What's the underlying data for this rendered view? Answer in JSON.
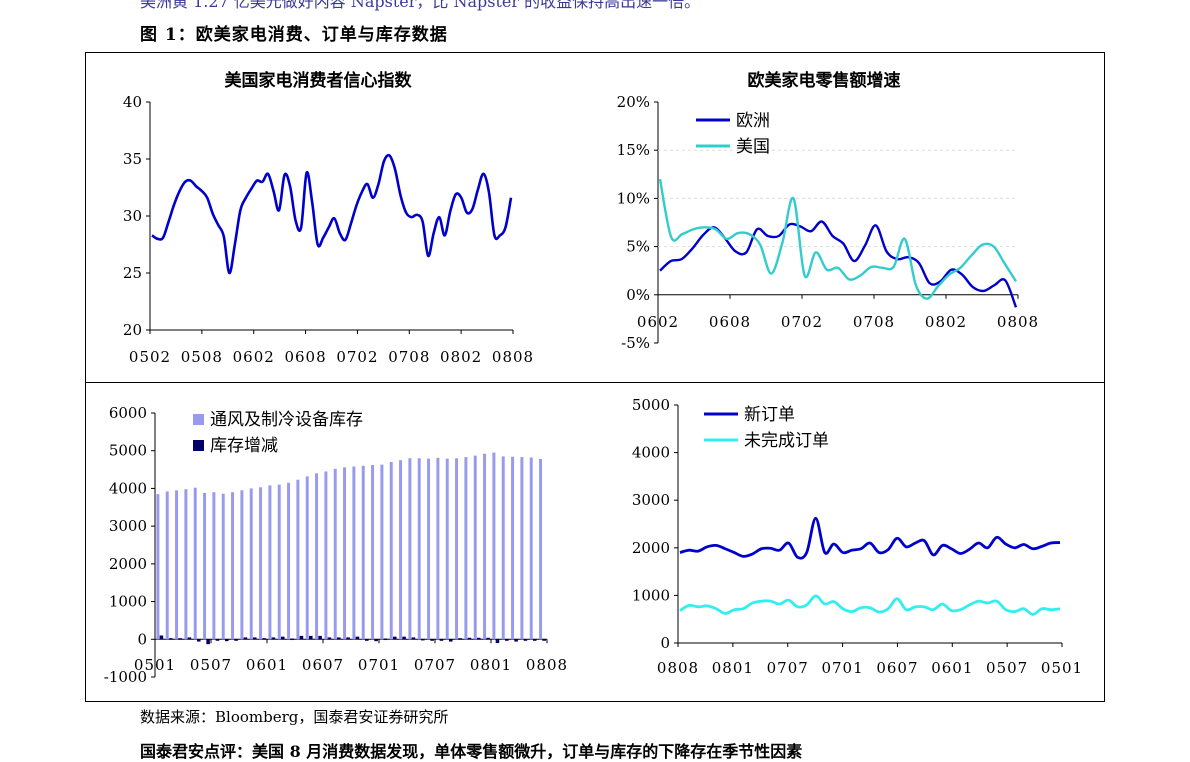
{
  "header": {
    "clipped_top_text": "美洲黄 1.27 亿美元做好内容 Napster，比 Napster 的收益保持高出速一倍。",
    "figure_title": "图 1：欧美家电消费、订单与库存数据"
  },
  "footer": {
    "source": "数据来源：Bloomberg，国泰君安证券研究所",
    "clipped_bottom_text": "国泰君安点评：美国 8 月消费数据发现，单体零售额微升，订单与库存的下降存在季节性因素"
  },
  "chart_data": [
    {
      "id": "c1",
      "type": "line",
      "title": "美国家电消费者信心指数",
      "ylim": [
        20,
        40
      ],
      "yticks": [
        "40",
        "35",
        "30",
        "25",
        "20"
      ],
      "xticks": [
        "0502",
        "0508",
        "0602",
        "0608",
        "0702",
        "0708",
        "0802",
        "0808"
      ],
      "colors": {
        "line": "#0000cc"
      },
      "series": [
        {
          "values": [
            28.3,
            28.0,
            28.1,
            29.5,
            31.0,
            32.2,
            33.0,
            33.1,
            32.6,
            32.2,
            31.6,
            30.2,
            29.2,
            28.2,
            25.0,
            27.5,
            30.5,
            31.6,
            32.4,
            33.1,
            33.0,
            33.7,
            32.2,
            30.5,
            33.6,
            32.6,
            29.6,
            29.0,
            33.8,
            31.2,
            27.5,
            28.1,
            29.0,
            29.8,
            28.5,
            27.9,
            29.3,
            30.9,
            32.1,
            32.8,
            31.6,
            32.8,
            34.8,
            35.3,
            34.1,
            31.8,
            30.3,
            29.9,
            30.1,
            29.5,
            26.5,
            28.5,
            29.9,
            28.3,
            30.4,
            31.9,
            31.6,
            30.3,
            30.6,
            32.3,
            33.7,
            32.1,
            28.3,
            28.3,
            29.0,
            31.6
          ]
        }
      ]
    },
    {
      "id": "c2",
      "type": "line",
      "title": "欧美家电零售额增速",
      "ylim": [
        -5,
        20
      ],
      "yticks": [
        "20%",
        "15%",
        "10%",
        "5%",
        "0%",
        "-5%"
      ],
      "xticks": [
        "0602",
        "0608",
        "0702",
        "0708",
        "0802",
        "0808"
      ],
      "legend": "top-left",
      "series": [
        {
          "name": "欧洲",
          "color": "#0000cc",
          "values": [
            2.5,
            3.5,
            3.7,
            4.8,
            6.2,
            7.0,
            5.9,
            4.5,
            4.4,
            6.8,
            6.1,
            6.1,
            7.3,
            7.1,
            6.6,
            7.6,
            6.1,
            5.3,
            3.5,
            5.1,
            7.2,
            4.5,
            3.7,
            3.9,
            3.3,
            1.2,
            1.4,
            2.6,
            2.1,
            0.8,
            0.4,
            1.0,
            1.5,
            -1.3
          ]
        },
        {
          "name": "美国",
          "color": "#33cccc",
          "values": [
            12.0,
            6.0,
            6.3,
            6.8,
            7.0,
            6.8,
            5.8,
            6.4,
            6.3,
            5.2,
            2.2,
            5.4,
            10.0,
            2.0,
            4.4,
            2.6,
            2.8,
            1.6,
            2.0,
            2.9,
            2.8,
            2.9,
            5.8,
            1.0,
            -0.4,
            0.9,
            2.1,
            2.8,
            4.1,
            5.2,
            5.0,
            3.2,
            1.4
          ]
        }
      ]
    },
    {
      "id": "c3",
      "type": "bar",
      "ylim": [
        -1000,
        6000
      ],
      "yticks": [
        "6000",
        "5000",
        "4000",
        "3000",
        "2000",
        "1000",
        "0",
        "-1000"
      ],
      "xticks": [
        "0501",
        "0507",
        "0601",
        "0607",
        "0701",
        "0707",
        "0801",
        "0808"
      ],
      "legend": "top-left",
      "series": [
        {
          "name": "通风及制冷设备库存",
          "color": "#9999ee",
          "values": [
            3850,
            3920,
            3950,
            3980,
            4020,
            3880,
            3900,
            3860,
            3900,
            3950,
            4000,
            4030,
            4080,
            4100,
            4150,
            4230,
            4320,
            4400,
            4450,
            4520,
            4560,
            4580,
            4600,
            4620,
            4630,
            4700,
            4750,
            4800,
            4800,
            4790,
            4810,
            4790,
            4800,
            4830,
            4870,
            4920,
            4950,
            4850,
            4840,
            4830,
            4820,
            4780
          ]
        },
        {
          "name": "库存增减",
          "color": "#000066",
          "values": [
            100,
            30,
            30,
            50,
            -60,
            -130,
            -30,
            -50,
            -40,
            50,
            50,
            30,
            50,
            70,
            20,
            90,
            90,
            90,
            50,
            50,
            50,
            70,
            -10,
            -50,
            20,
            70,
            70,
            50,
            10,
            -30,
            -40,
            -60,
            30,
            40,
            40,
            40,
            -100,
            -30,
            -60,
            -10,
            -10,
            -30
          ]
        }
      ]
    },
    {
      "id": "c4",
      "type": "line",
      "ylim": [
        0,
        5000
      ],
      "yticks": [
        "5000",
        "4000",
        "3000",
        "2000",
        "1000",
        "0"
      ],
      "xticks": [
        "0808",
        "0801",
        "0707",
        "0701",
        "0607",
        "0601",
        "0507",
        "0501"
      ],
      "legend": "top-left",
      "series": [
        {
          "name": "新订单",
          "color": "#0000cc",
          "values": [
            1900,
            1950,
            1930,
            2020,
            2050,
            1980,
            1900,
            1820,
            1870,
            1980,
            1990,
            1950,
            2100,
            1800,
            1900,
            2620,
            1900,
            2080,
            1900,
            1950,
            1980,
            2100,
            1900,
            1960,
            2200,
            2020,
            2100,
            2150,
            1850,
            2050,
            1980,
            1880,
            1970,
            2100,
            2000,
            2220,
            2080,
            2000,
            2070,
            1980,
            2030,
            2100,
            2110
          ]
        },
        {
          "name": "未完成订单",
          "color": "#33eeee",
          "values": [
            680,
            790,
            760,
            780,
            720,
            620,
            700,
            720,
            840,
            880,
            880,
            820,
            900,
            760,
            800,
            990,
            820,
            870,
            720,
            660,
            740,
            740,
            650,
            720,
            930,
            700,
            760,
            760,
            700,
            820,
            680,
            700,
            800,
            880,
            840,
            880,
            700,
            660,
            720,
            600,
            720,
            700,
            720
          ]
        }
      ]
    }
  ]
}
